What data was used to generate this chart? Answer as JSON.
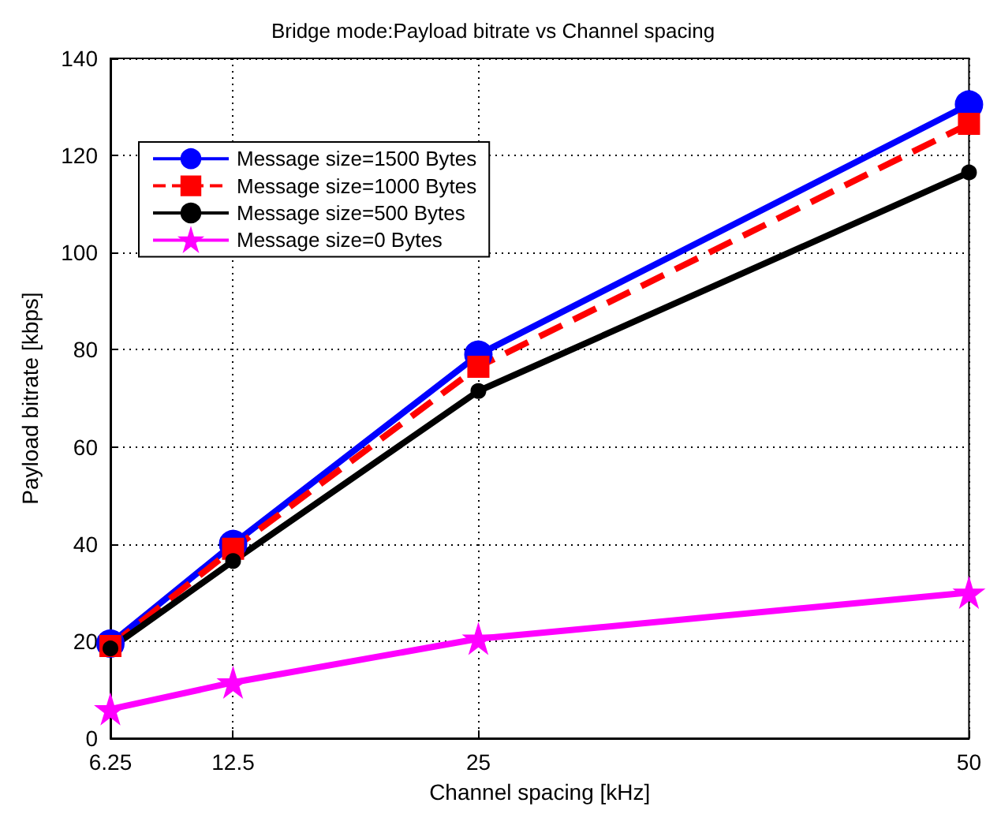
{
  "chart_data": {
    "type": "line",
    "title": "Bridge mode:Payload bitrate vs Channel spacing",
    "xlabel": "Channel spacing [kHz]",
    "ylabel": "Payload bitrate [kbps]",
    "x": [
      6.25,
      12.5,
      25,
      50
    ],
    "series": [
      {
        "name": "Message size=1500 Bytes",
        "color": "#0000ff",
        "marker": "circle",
        "line_style": "solid",
        "values": [
          19.5,
          40,
          79,
          130.5
        ]
      },
      {
        "name": "Message size=1000 Bytes",
        "color": "#ff0000",
        "marker": "square",
        "line_style": "dashed",
        "values": [
          19,
          39,
          76.5,
          126.5
        ]
      },
      {
        "name": "Message size=500 Bytes",
        "color": "#000000",
        "marker": "circle",
        "line_style": "solid",
        "values": [
          18.5,
          36.5,
          71.5,
          116.5
        ]
      },
      {
        "name": "Message size=0 Bytes",
        "color": "#ff00ff",
        "marker": "star",
        "line_style": "solid",
        "values": [
          6,
          11.5,
          20.5,
          30
        ]
      }
    ],
    "xlim": [
      6.25,
      50
    ],
    "xticks": [
      6.25,
      12.5,
      25,
      50
    ],
    "ylim": [
      0,
      140
    ],
    "yticks": [
      0,
      20,
      40,
      60,
      80,
      100,
      120,
      140
    ],
    "grid": true,
    "legend": "top left"
  }
}
